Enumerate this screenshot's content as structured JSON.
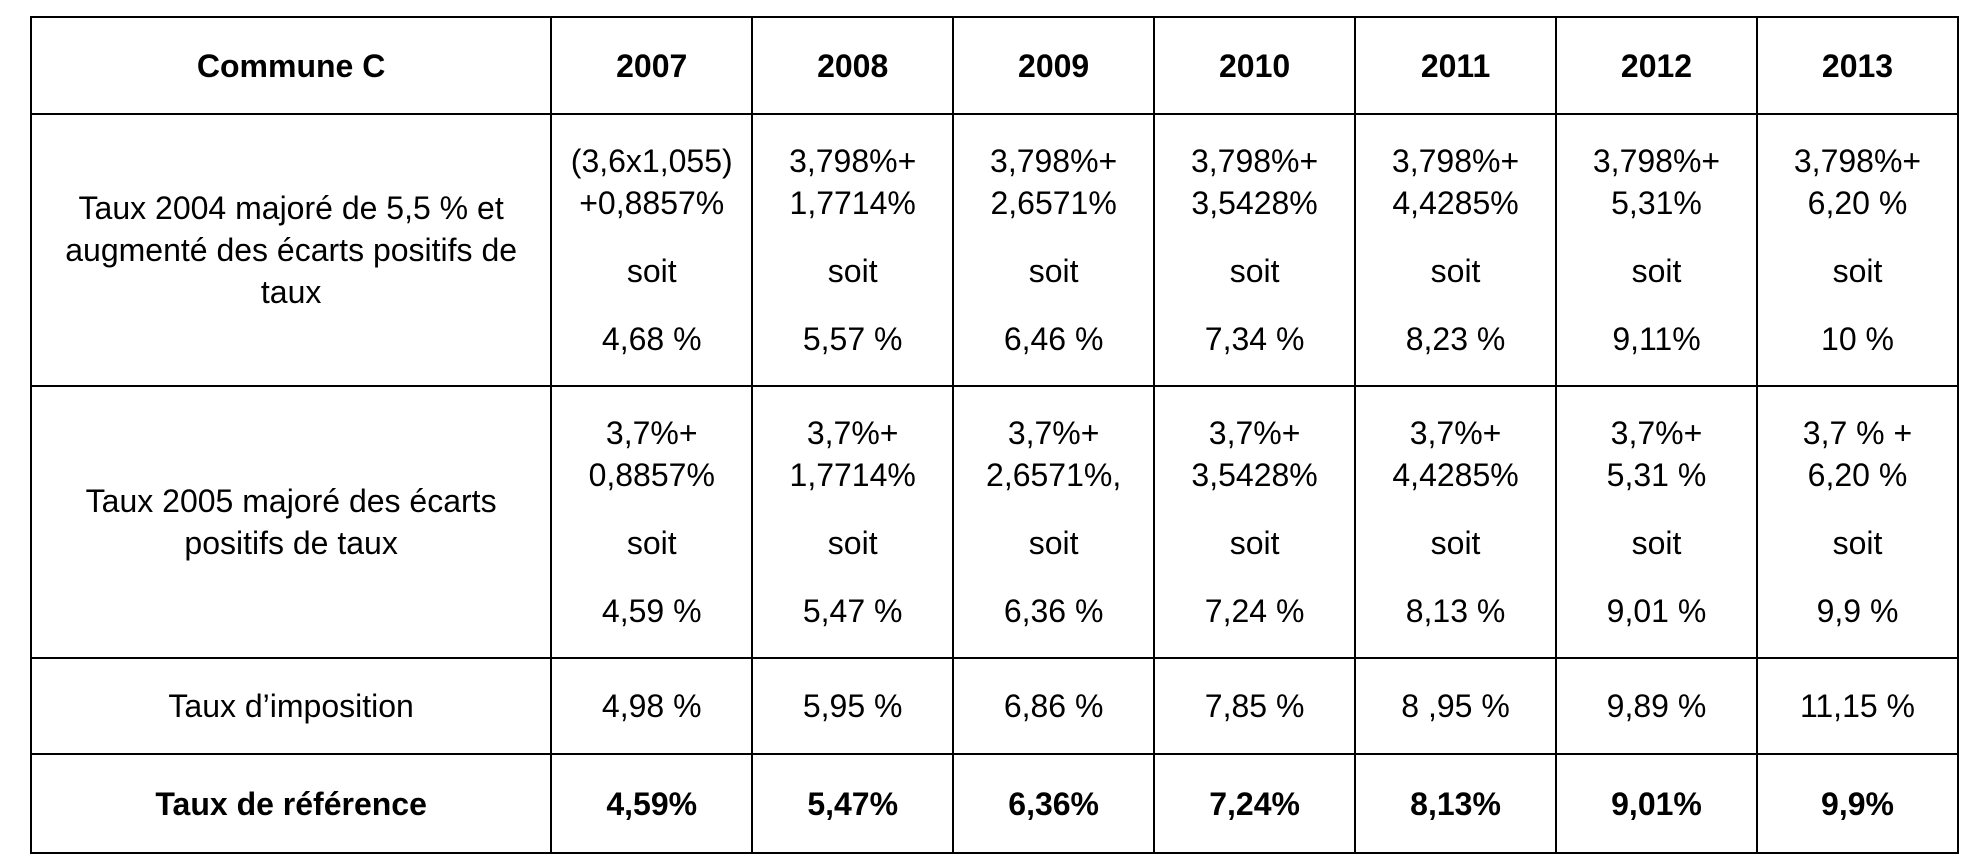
{
  "table": {
    "header": {
      "commune": "Commune C",
      "years": [
        "2007",
        "2008",
        "2009",
        "2010",
        "2011",
        "2012",
        "2013"
      ]
    },
    "row_2004": {
      "label": "Taux 2004 majoré de 5,5 % et augmenté des écarts positifs de taux",
      "cells": [
        {
          "line1": "(3,6x1,055)",
          "line2": "+0,8857%",
          "soit": "soit",
          "result": "4,68 %"
        },
        {
          "line1": "3,798%+",
          "line2": "1,7714%",
          "soit": "soit",
          "result": "5,57 %"
        },
        {
          "line1": "3,798%+",
          "line2": "2,6571%",
          "soit": "soit",
          "result": "6,46 %"
        },
        {
          "line1": "3,798%+",
          "line2": "3,5428%",
          "soit": "soit",
          "result": "7,34 %"
        },
        {
          "line1": "3,798%+",
          "line2": "4,4285%",
          "soit": "soit",
          "result": "8,23 %"
        },
        {
          "line1": "3,798%+",
          "line2": "5,31%",
          "soit": "soit",
          "result": "9,11%"
        },
        {
          "line1": "3,798%+",
          "line2": "6,20 %",
          "soit": "soit",
          "result": "10 %"
        }
      ]
    },
    "row_2005": {
      "label": "Taux 2005 majoré des écarts positifs de taux",
      "cells": [
        {
          "line1": "3,7%+",
          "line2": "0,8857%",
          "soit": "soit",
          "result": "4,59 %"
        },
        {
          "line1": "3,7%+",
          "line2": "1,7714%",
          "soit": "soit",
          "result": "5,47 %"
        },
        {
          "line1": "3,7%+",
          "line2": "2,6571%,",
          "soit": "soit",
          "result": "6,36 %"
        },
        {
          "line1": "3,7%+",
          "line2": "3,5428%",
          "soit": "soit",
          "result": "7,24 %"
        },
        {
          "line1": "3,7%+",
          "line2": "4,4285%",
          "soit": "soit",
          "result": "8,13 %"
        },
        {
          "line1": "3,7%+",
          "line2": "5,31 %",
          "soit": "soit",
          "result": "9,01 %"
        },
        {
          "line1": "3,7 % +",
          "line2": "6,20 %",
          "soit": "soit",
          "result": "9,9 %"
        }
      ]
    },
    "row_imposition": {
      "label": "Taux d’imposition",
      "values": [
        "4,98 %",
        "5,95 %",
        "6,86 %",
        "7,85 %",
        "8 ,95 %",
        "9,89 %",
        "11,15 %"
      ]
    },
    "row_reference": {
      "label": "Taux de référence",
      "values": [
        "4,59%",
        "5,47%",
        "6,36%",
        "7,24%",
        "8,13%",
        "9,01%",
        "9,9%"
      ]
    }
  }
}
